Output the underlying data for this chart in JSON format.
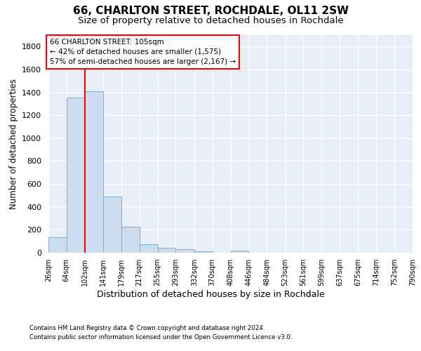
{
  "title1": "66, CHARLTON STREET, ROCHDALE, OL11 2SW",
  "title2": "Size of property relative to detached houses in Rochdale",
  "xlabel": "Distribution of detached houses by size in Rochdale",
  "ylabel": "Number of detached properties",
  "footer1": "Contains HM Land Registry data © Crown copyright and database right 2024.",
  "footer2": "Contains public sector information licensed under the Open Government Licence v3.0.",
  "bin_edges": [
    26,
    64,
    102,
    141,
    179,
    217,
    255,
    293,
    332,
    370,
    408,
    446,
    484,
    523,
    561,
    599,
    637,
    675,
    714,
    752,
    790
  ],
  "bar_heights": [
    135,
    1355,
    1410,
    490,
    225,
    75,
    45,
    28,
    15,
    0,
    20,
    0,
    0,
    0,
    0,
    0,
    0,
    0,
    0,
    0
  ],
  "bar_color": "#ccddf0",
  "bar_edge_color": "#7aafd4",
  "red_line_x": 102,
  "annotation_title": "66 CHARLTON STREET: 105sqm",
  "annotation_line1": "← 42% of detached houses are smaller (1,575)",
  "annotation_line2": "57% of semi-detached houses are larger (2,167) →",
  "ylim": [
    0,
    1900
  ],
  "yticks": [
    0,
    200,
    400,
    600,
    800,
    1000,
    1200,
    1400,
    1600,
    1800
  ],
  "background_color": "#e8eef8",
  "grid_color": "#ffffff",
  "title1_fontsize": 11,
  "title2_fontsize": 9.5,
  "xlabel_fontsize": 9,
  "ylabel_fontsize": 8.5
}
